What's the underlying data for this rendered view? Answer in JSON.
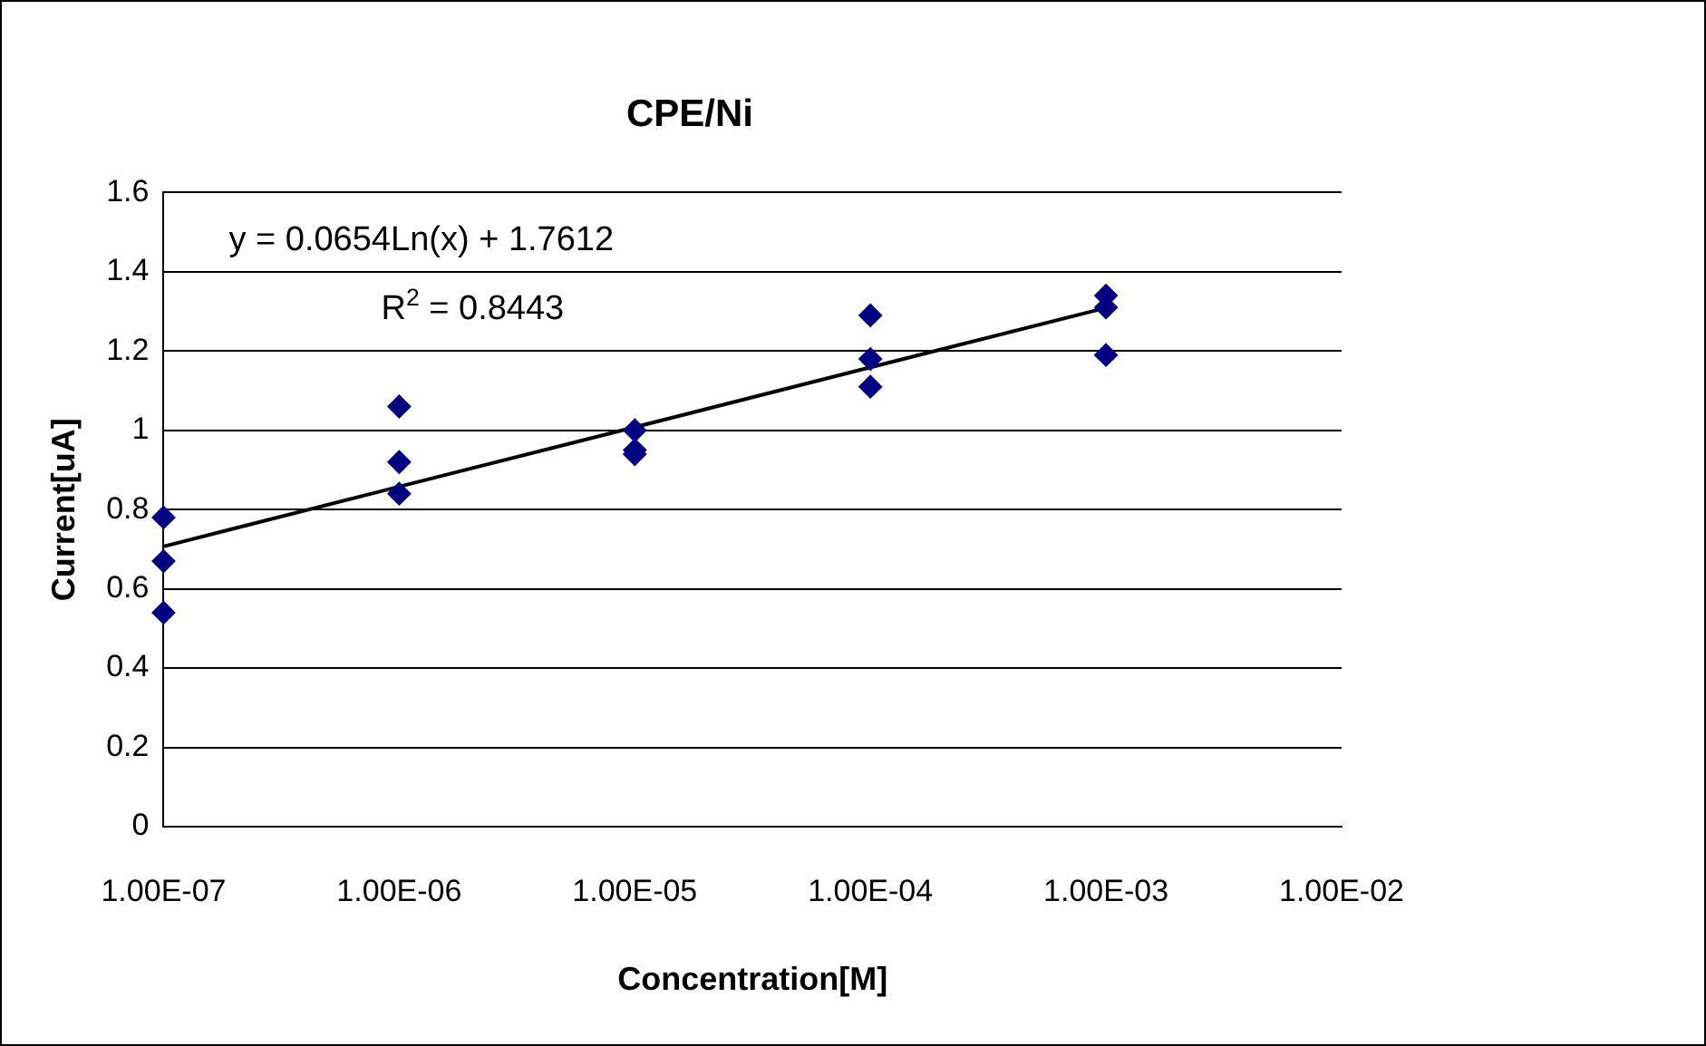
{
  "chart_data": {
    "type": "scatter",
    "title": "CPE/Ni",
    "xlabel": "Concentration[M]",
    "ylabel": "Current[uA]",
    "log": "x",
    "grid": "y",
    "legend": false,
    "marker": "diamond",
    "xlim": [
      1e-07,
      0.01
    ],
    "xticks": [
      {
        "value": 1e-07,
        "label": "1.00E-07"
      },
      {
        "value": 1e-06,
        "label": "1.00E-06"
      },
      {
        "value": 1e-05,
        "label": "1.00E-05"
      },
      {
        "value": 0.0001,
        "label": "1.00E-04"
      },
      {
        "value": 0.001,
        "label": "1.00E-03"
      },
      {
        "value": 0.01,
        "label": "1.00E-02"
      }
    ],
    "ylim": [
      0,
      1.6
    ],
    "yticks": [
      0,
      0.2,
      0.4,
      0.6,
      0.8,
      1,
      1.2,
      1.4,
      1.6
    ],
    "series": [
      {
        "color": "#000080",
        "x": [
          1e-07,
          1e-07,
          1e-07,
          1e-06,
          1e-06,
          1e-06,
          1e-05,
          1e-05,
          1e-05,
          0.0001,
          0.0001,
          0.0001,
          0.001,
          0.001,
          0.001
        ],
        "values": [
          0.78,
          0.67,
          0.54,
          1.06,
          0.92,
          0.84,
          1.0,
          0.95,
          0.94,
          1.29,
          1.18,
          1.11,
          1.34,
          1.31,
          1.19
        ]
      },
      {
        "type": "line",
        "color": "#000000",
        "marker": "none",
        "x": [
          1e-07,
          1e-06,
          1e-05,
          0.0001,
          0.001
        ],
        "values": [
          0.707,
          0.858,
          1.008,
          1.159,
          1.309
        ]
      }
    ],
    "annotations": [
      "y = 0.0654Ln(x) + 1.7612",
      "R$^{2}$ = 0.8443"
    ]
  }
}
